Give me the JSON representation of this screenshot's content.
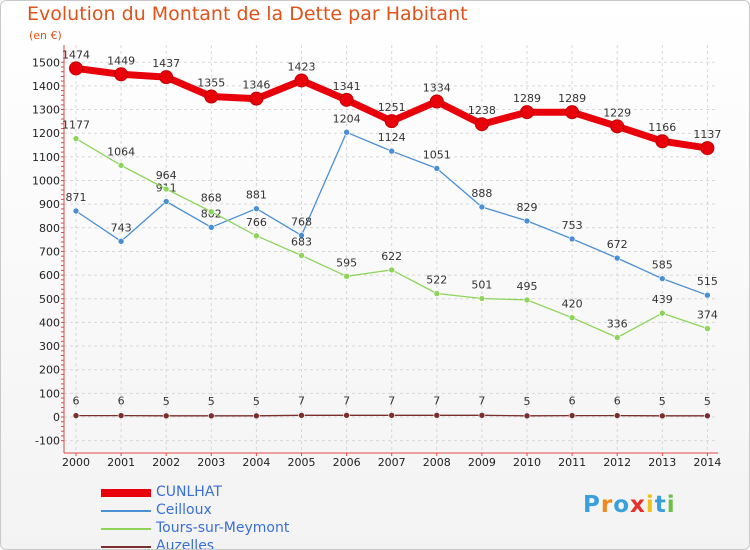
{
  "chart_data": {
    "type": "line",
    "title": "Evolution du Montant de la Dette par Habitant",
    "unit": "(en €)",
    "xlabel": "",
    "ylabel": "",
    "x": [
      "2000",
      "2001",
      "2002",
      "2003",
      "2004",
      "2005",
      "2006",
      "2007",
      "2008",
      "2009",
      "2010",
      "2011",
      "2012",
      "2013",
      "2014"
    ],
    "ylim": [
      -100,
      1500
    ],
    "yticks": [
      -100,
      0,
      100,
      200,
      300,
      400,
      500,
      600,
      700,
      800,
      900,
      1000,
      1100,
      1200,
      1300,
      1400,
      1500
    ],
    "grid": true,
    "legend_position": "bottom-left",
    "series": [
      {
        "name": "CUNLHAT",
        "color": "#e8000b",
        "values": [
          1474,
          1449,
          1437,
          1355,
          1346,
          1423,
          1341,
          1251,
          1334,
          1238,
          1289,
          1289,
          1229,
          1166,
          1137
        ]
      },
      {
        "name": "Ceilloux",
        "color": "#4a8fd4",
        "values": [
          871,
          743,
          911,
          802,
          881,
          768,
          1204,
          1124,
          1051,
          888,
          829,
          753,
          672,
          585,
          515
        ]
      },
      {
        "name": "Tours-sur-Meymont",
        "color": "#8ed45a",
        "values": [
          1177,
          1064,
          964,
          868,
          766,
          683,
          595,
          622,
          522,
          501,
          495,
          420,
          336,
          439,
          374
        ]
      },
      {
        "name": "Auzelles",
        "color": "#7a2f2f",
        "values": [
          6,
          6,
          5,
          5,
          5,
          7,
          7,
          7,
          7,
          7,
          5,
          6,
          6,
          5,
          5
        ]
      }
    ]
  },
  "legend": {
    "items": [
      {
        "label": "CUNLHAT",
        "color": "#e8000b"
      },
      {
        "label": "Ceilloux",
        "color": "#4a8fd4"
      },
      {
        "label": "Tours-sur-Meymont",
        "color": "#8ed45a"
      },
      {
        "label": "Auzelles",
        "color": "#7a2f2f"
      }
    ]
  },
  "logo": {
    "text": "Proxiti",
    "letters": [
      {
        "ch": "P",
        "color": "#3aa0dc"
      },
      {
        "ch": "r",
        "color": "#f08a1c"
      },
      {
        "ch": "o",
        "color": "#3aa0dc"
      },
      {
        "ch": "x",
        "color": "#e8302a"
      },
      {
        "ch": "i",
        "color": "#f0c21c"
      },
      {
        "ch": "t",
        "color": "#3aa0dc"
      },
      {
        "ch": "i",
        "color": "#6cc04a"
      }
    ]
  }
}
